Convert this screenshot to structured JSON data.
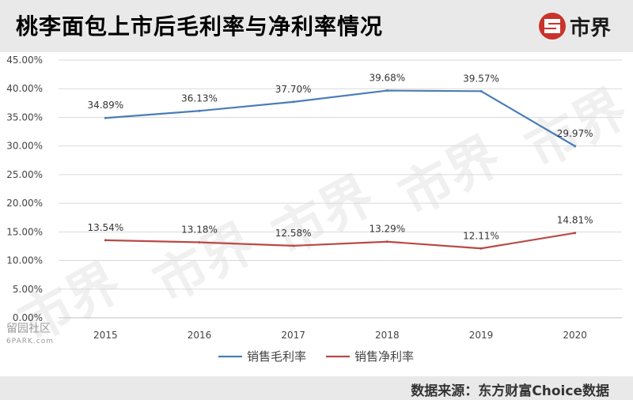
{
  "header": {
    "title": "桃李面包上市后毛利率与净利率情况",
    "brand_name": "市界"
  },
  "watermark_text": "市界",
  "site_mark": {
    "line1": "留园社区",
    "line2": "6PARK.com"
  },
  "source": {
    "label": "数据来源：",
    "value": "东方财富Choice数据"
  },
  "chart_data": {
    "type": "line",
    "title": "桃李面包上市后毛利率与净利率情况",
    "xlabel": "",
    "ylabel": "",
    "categories": [
      "2015",
      "2016",
      "2017",
      "2018",
      "2019",
      "2020"
    ],
    "ylim": [
      0,
      45
    ],
    "y_ticks": [
      "0.00%",
      "5.00%",
      "10.00%",
      "15.00%",
      "20.00%",
      "25.00%",
      "30.00%",
      "35.00%",
      "40.00%",
      "45.00%"
    ],
    "grid": true,
    "legend_position": "bottom",
    "series": [
      {
        "name": "销售毛利率",
        "color": "#4a7db6",
        "values": [
          34.89,
          36.13,
          37.7,
          39.68,
          39.57,
          29.97
        ],
        "labels": [
          "34.89%",
          "36.13%",
          "37.70%",
          "39.68%",
          "39.57%",
          "29.97%"
        ]
      },
      {
        "name": "销售净利率",
        "color": "#b84a45",
        "values": [
          13.54,
          13.18,
          12.58,
          13.29,
          12.11,
          14.81
        ],
        "labels": [
          "13.54%",
          "13.18%",
          "12.58%",
          "13.29%",
          "12.11%",
          "14.81%"
        ]
      }
    ]
  }
}
